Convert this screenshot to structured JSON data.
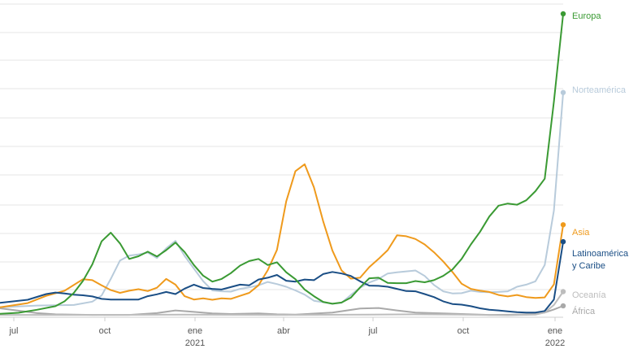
{
  "chart_data": {
    "type": "line",
    "title": "",
    "xlabel": "",
    "ylabel": "",
    "x_ticks": [
      {
        "label": "jul",
        "year": ""
      },
      {
        "label": "oct",
        "year": ""
      },
      {
        "label": "ene",
        "year": "2021"
      },
      {
        "label": "abr",
        "year": ""
      },
      {
        "label": "jul",
        "year": ""
      },
      {
        "label": "oct",
        "year": ""
      },
      {
        "label": "ene",
        "year": "2022"
      }
    ],
    "x_range": [
      "2020-06",
      "2022-01"
    ],
    "y_range": [
      0,
      100
    ],
    "grid": true,
    "legend": "direct labels at line ends",
    "series": [
      {
        "name": "Europa",
        "color": "#3a9a33",
        "points": [
          [
            0,
            0.9
          ],
          [
            2,
            1.2
          ],
          [
            4,
            2.2
          ],
          [
            6,
            3.4
          ],
          [
            7,
            5.0
          ],
          [
            8,
            7.8
          ],
          [
            9,
            11.8
          ],
          [
            10,
            17.2
          ],
          [
            11,
            24.8
          ],
          [
            12,
            27.7
          ],
          [
            13,
            24.1
          ],
          [
            14,
            19.0
          ],
          [
            15,
            19.9
          ],
          [
            16,
            21.4
          ],
          [
            17,
            19.8
          ],
          [
            18,
            21.9
          ],
          [
            19,
            24.4
          ],
          [
            20,
            21.3
          ],
          [
            21,
            17.0
          ],
          [
            22,
            13.5
          ],
          [
            23,
            11.5
          ],
          [
            24,
            12.4
          ],
          [
            25,
            14.3
          ],
          [
            26,
            16.8
          ],
          [
            27,
            18.3
          ],
          [
            28,
            19.0
          ],
          [
            29,
            17.0
          ],
          [
            30,
            17.9
          ],
          [
            31,
            14.6
          ],
          [
            32,
            12.3
          ],
          [
            33,
            8.9
          ],
          [
            34,
            6.7
          ],
          [
            35,
            4.8
          ],
          [
            36,
            4.2
          ],
          [
            37,
            4.6
          ],
          [
            38,
            6.2
          ],
          [
            39,
            9.6
          ],
          [
            40,
            12.6
          ],
          [
            41,
            12.8
          ],
          [
            42,
            11.1
          ],
          [
            43,
            11.0
          ],
          [
            44,
            11.0
          ],
          [
            45,
            11.7
          ],
          [
            46,
            11.3
          ],
          [
            47,
            12.0
          ],
          [
            48,
            13.4
          ],
          [
            49,
            15.5
          ],
          [
            50,
            19.0
          ],
          [
            51,
            23.8
          ],
          [
            52,
            28.0
          ],
          [
            53,
            33.0
          ],
          [
            54,
            36.6
          ],
          [
            55,
            37.3
          ],
          [
            56,
            36.9
          ],
          [
            57,
            38.4
          ],
          [
            58,
            41.4
          ],
          [
            59,
            45.5
          ],
          [
            60,
            71.0
          ],
          [
            61,
            100.0
          ]
        ]
      },
      {
        "name": "Norteamérica",
        "color": "#b8cbdb",
        "points": [
          [
            0,
            3.0
          ],
          [
            4,
            3.6
          ],
          [
            8,
            3.8
          ],
          [
            10,
            4.9
          ],
          [
            11,
            6.9
          ],
          [
            12,
            12.4
          ],
          [
            13,
            18.5
          ],
          [
            14,
            20.1
          ],
          [
            15,
            20.5
          ],
          [
            16,
            21.1
          ],
          [
            17,
            19.3
          ],
          [
            18,
            22.5
          ],
          [
            19,
            25.0
          ],
          [
            20,
            20.0
          ],
          [
            21,
            15.8
          ],
          [
            22,
            11.7
          ],
          [
            23,
            8.6
          ],
          [
            24,
            8.3
          ],
          [
            25,
            8.2
          ],
          [
            26,
            9.1
          ],
          [
            27,
            9.6
          ],
          [
            28,
            10.3
          ],
          [
            29,
            11.4
          ],
          [
            30,
            10.7
          ],
          [
            31,
            9.8
          ],
          [
            32,
            8.6
          ],
          [
            33,
            7.2
          ],
          [
            34,
            5.2
          ],
          [
            35,
            4.7
          ],
          [
            36,
            4.2
          ],
          [
            37,
            4.5
          ],
          [
            38,
            7.1
          ],
          [
            39,
            9.5
          ],
          [
            40,
            11.2
          ],
          [
            41,
            12.4
          ],
          [
            42,
            14.2
          ],
          [
            43,
            14.6
          ],
          [
            44,
            14.9
          ],
          [
            45,
            15.2
          ],
          [
            46,
            13.4
          ],
          [
            47,
            10.4
          ],
          [
            48,
            8.3
          ],
          [
            49,
            7.6
          ],
          [
            50,
            7.7
          ],
          [
            51,
            8.5
          ],
          [
            52,
            8.1
          ],
          [
            53,
            8.0
          ],
          [
            54,
            8.1
          ],
          [
            55,
            8.3
          ],
          [
            56,
            9.8
          ],
          [
            57,
            10.5
          ],
          [
            58,
            11.6
          ],
          [
            59,
            17.0
          ],
          [
            60,
            35.0
          ],
          [
            61,
            74.0
          ]
        ]
      },
      {
        "name": "Asia",
        "color": "#ef9a1c",
        "points": [
          [
            0,
            3.0
          ],
          [
            3,
            4.4
          ],
          [
            5,
            6.8
          ],
          [
            7,
            8.5
          ],
          [
            9,
            12.3
          ],
          [
            10,
            12.0
          ],
          [
            11,
            10.3
          ],
          [
            12,
            8.7
          ],
          [
            13,
            7.8
          ],
          [
            14,
            8.5
          ],
          [
            15,
            9.0
          ],
          [
            16,
            8.4
          ],
          [
            17,
            9.5
          ],
          [
            18,
            12.4
          ],
          [
            19,
            10.5
          ],
          [
            20,
            6.7
          ],
          [
            21,
            5.6
          ],
          [
            22,
            6.0
          ],
          [
            23,
            5.5
          ],
          [
            24,
            6.0
          ],
          [
            25,
            5.8
          ],
          [
            26,
            6.8
          ],
          [
            27,
            7.8
          ],
          [
            28,
            10.3
          ],
          [
            29,
            15.3
          ],
          [
            30,
            22.0
          ],
          [
            31,
            38.0
          ],
          [
            32,
            48.0
          ],
          [
            33,
            50.3
          ],
          [
            34,
            42.7
          ],
          [
            35,
            31.5
          ],
          [
            36,
            21.8
          ],
          [
            37,
            15.2
          ],
          [
            38,
            12.5
          ],
          [
            39,
            12.8
          ],
          [
            40,
            16.3
          ],
          [
            41,
            19.0
          ],
          [
            42,
            21.9
          ],
          [
            43,
            26.8
          ],
          [
            44,
            26.5
          ],
          [
            45,
            25.6
          ],
          [
            46,
            23.8
          ],
          [
            47,
            21.2
          ],
          [
            48,
            18.2
          ],
          [
            49,
            14.7
          ],
          [
            50,
            10.8
          ],
          [
            51,
            9.1
          ],
          [
            52,
            8.5
          ],
          [
            53,
            8.1
          ],
          [
            54,
            7.1
          ],
          [
            55,
            6.6
          ],
          [
            56,
            7.1
          ],
          [
            57,
            6.4
          ],
          [
            58,
            6.1
          ],
          [
            59,
            6.3
          ],
          [
            60,
            10.6
          ],
          [
            61,
            30.3
          ]
        ]
      },
      {
        "name": "Latinoamérica y Caribe",
        "color": "#1a4e85",
        "points": [
          [
            0,
            4.5
          ],
          [
            3,
            5.5
          ],
          [
            5,
            7.4
          ],
          [
            6,
            7.9
          ],
          [
            7,
            7.6
          ],
          [
            8,
            7.2
          ],
          [
            9,
            7.0
          ],
          [
            10,
            6.6
          ],
          [
            11,
            5.8
          ],
          [
            12,
            5.6
          ],
          [
            13,
            5.6
          ],
          [
            14,
            5.6
          ],
          [
            15,
            5.6
          ],
          [
            16,
            6.7
          ],
          [
            17,
            7.3
          ],
          [
            18,
            8.1
          ],
          [
            19,
            7.4
          ],
          [
            20,
            9.2
          ],
          [
            21,
            10.5
          ],
          [
            22,
            9.4
          ],
          [
            23,
            9.1
          ],
          [
            24,
            8.9
          ],
          [
            25,
            9.7
          ],
          [
            26,
            10.5
          ],
          [
            27,
            10.3
          ],
          [
            28,
            12.2
          ],
          [
            29,
            12.8
          ],
          [
            30,
            13.7
          ],
          [
            31,
            11.8
          ],
          [
            32,
            11.5
          ],
          [
            33,
            12.2
          ],
          [
            34,
            12.0
          ],
          [
            35,
            14.0
          ],
          [
            36,
            14.7
          ],
          [
            37,
            14.2
          ],
          [
            38,
            13.4
          ],
          [
            39,
            11.6
          ],
          [
            40,
            10.2
          ],
          [
            41,
            10.1
          ],
          [
            42,
            9.8
          ],
          [
            43,
            9.1
          ],
          [
            44,
            8.4
          ],
          [
            45,
            8.3
          ],
          [
            46,
            7.4
          ],
          [
            47,
            6.4
          ],
          [
            48,
            5.0
          ],
          [
            49,
            4.1
          ],
          [
            50,
            3.9
          ],
          [
            51,
            3.4
          ],
          [
            52,
            2.7
          ],
          [
            53,
            2.2
          ],
          [
            54,
            2.0
          ],
          [
            55,
            1.7
          ],
          [
            56,
            1.4
          ],
          [
            57,
            1.3
          ],
          [
            58,
            1.3
          ],
          [
            59,
            1.8
          ],
          [
            60,
            5.6
          ],
          [
            61,
            24.7
          ]
        ]
      },
      {
        "name": "Oceanía",
        "color": "#bdbdbd",
        "points": [
          [
            0,
            0.5
          ],
          [
            10,
            0.5
          ],
          [
            20,
            0.6
          ],
          [
            30,
            0.5
          ],
          [
            40,
            0.6
          ],
          [
            45,
            0.7
          ],
          [
            50,
            0.6
          ],
          [
            55,
            0.4
          ],
          [
            58,
            0.6
          ],
          [
            59,
            1.3
          ],
          [
            60,
            3.8
          ],
          [
            61,
            8.2
          ]
        ]
      },
      {
        "name": "África",
        "color": "#a9a9a9",
        "points": [
          [
            0,
            2.7
          ],
          [
            2,
            1.9
          ],
          [
            4,
            1.1
          ],
          [
            6,
            0.7
          ],
          [
            10,
            0.5
          ],
          [
            14,
            0.5
          ],
          [
            17,
            1.1
          ],
          [
            19,
            2.0
          ],
          [
            21,
            1.5
          ],
          [
            23,
            1.0
          ],
          [
            25,
            0.8
          ],
          [
            28,
            1.0
          ],
          [
            30,
            0.7
          ],
          [
            32,
            0.6
          ],
          [
            36,
            1.3
          ],
          [
            39,
            2.6
          ],
          [
            41,
            2.8
          ],
          [
            43,
            2.0
          ],
          [
            45,
            1.3
          ],
          [
            48,
            1.0
          ],
          [
            50,
            0.8
          ],
          [
            53,
            0.5
          ],
          [
            56,
            0.6
          ],
          [
            58,
            0.8
          ],
          [
            59,
            1.3
          ],
          [
            60,
            2.3
          ],
          [
            61,
            3.5
          ]
        ]
      }
    ]
  }
}
